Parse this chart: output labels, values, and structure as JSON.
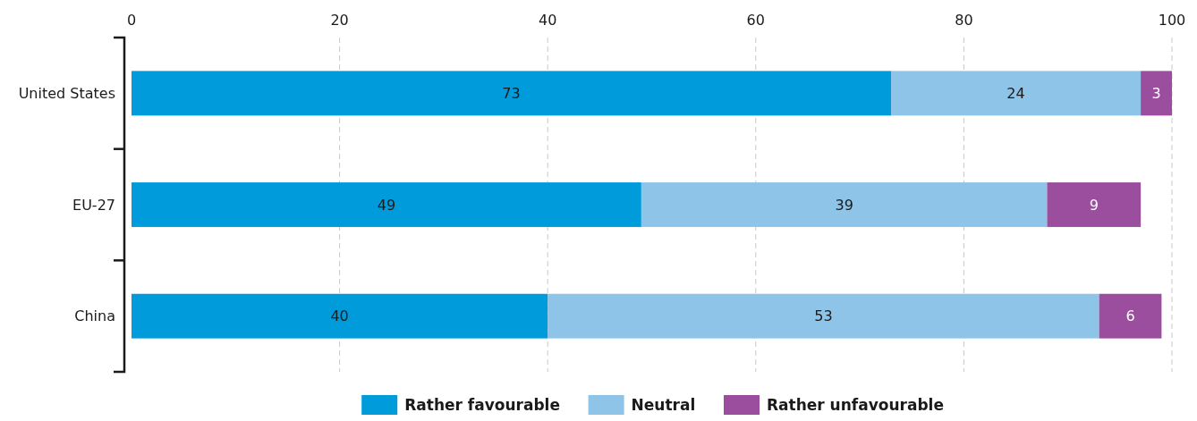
{
  "chart_data": {
    "type": "bar",
    "orientation": "horizontal",
    "stacked": true,
    "categories": [
      "United States",
      "EU-27",
      "China"
    ],
    "series": [
      {
        "name": "Rather favourable",
        "color": "#009bdb",
        "values": [
          73,
          49,
          40
        ]
      },
      {
        "name": "Neutral",
        "color": "#8dc4e8",
        "values": [
          24,
          39,
          53
        ]
      },
      {
        "name": "Rather unfavourable",
        "color": "#9b4d9e",
        "values": [
          3,
          9,
          6
        ]
      }
    ],
    "xlim": [
      0,
      100
    ],
    "xticks": [
      0,
      20,
      40,
      60,
      80,
      100
    ],
    "grid": "x",
    "data_labels": true,
    "legend": "bottom"
  }
}
